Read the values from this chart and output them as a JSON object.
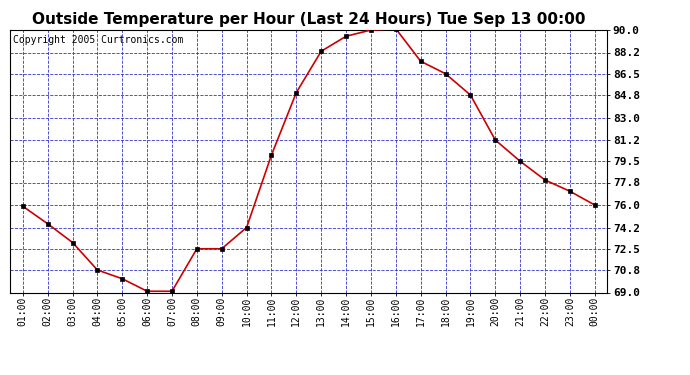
{
  "title": "Outside Temperature per Hour (Last 24 Hours) Tue Sep 13 00:00",
  "copyright": "Copyright 2005 Curtronics.com",
  "hours": [
    "01:00",
    "02:00",
    "03:00",
    "04:00",
    "05:00",
    "06:00",
    "07:00",
    "08:00",
    "09:00",
    "10:00",
    "11:00",
    "12:00",
    "13:00",
    "14:00",
    "15:00",
    "16:00",
    "17:00",
    "18:00",
    "19:00",
    "20:00",
    "21:00",
    "22:00",
    "23:00",
    "00:00"
  ],
  "temps": [
    75.9,
    74.5,
    73.0,
    70.8,
    70.1,
    69.1,
    69.1,
    72.5,
    72.5,
    74.2,
    80.0,
    85.0,
    88.3,
    89.5,
    90.0,
    90.1,
    87.5,
    86.5,
    84.8,
    81.2,
    79.5,
    78.0,
    77.1,
    76.0
  ],
  "line_color": "#cc0000",
  "marker_color": "#000000",
  "bg_color": "#ffffff",
  "plot_bg_color": "#ffffff",
  "grid_color": "#3333cc",
  "title_fontsize": 11,
  "copyright_fontsize": 7,
  "ylim": [
    69.0,
    90.0
  ],
  "yticks": [
    69.0,
    70.8,
    72.5,
    74.2,
    76.0,
    77.8,
    79.5,
    81.2,
    83.0,
    84.8,
    86.5,
    88.2,
    90.0
  ]
}
